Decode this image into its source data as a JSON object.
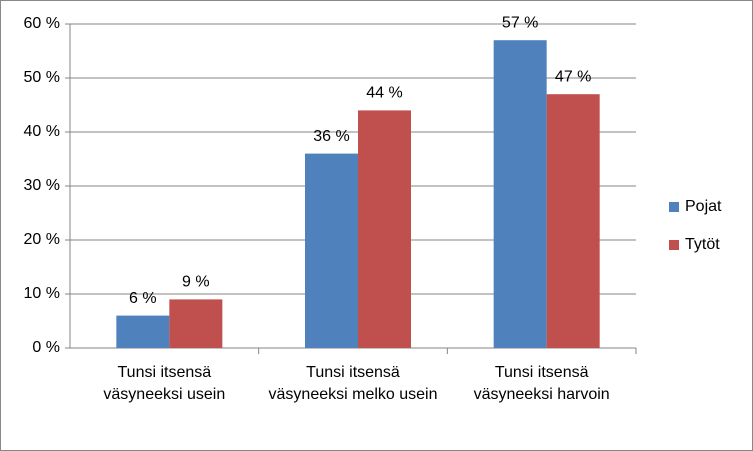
{
  "chart_data": {
    "type": "bar",
    "categories": [
      "Tunsi itsensä väsyneeksi usein",
      "Tunsi itsensä väsyneeksi melko usein",
      "Tunsi itsensä väsyneeksi harvoin"
    ],
    "series": [
      {
        "name": "Pojat",
        "color": "#4f81bd",
        "values": [
          6,
          36,
          57
        ],
        "value_labels": [
          "6 %",
          "36 %",
          "57 %"
        ]
      },
      {
        "name": "Tytöt",
        "color": "#c0504d",
        "values": [
          9,
          44,
          47
        ],
        "value_labels": [
          "9 %",
          "44 %",
          "47 %"
        ]
      }
    ],
    "ylim": [
      0,
      60
    ],
    "yticks": [
      {
        "value": 0,
        "label": "0 %"
      },
      {
        "value": 10,
        "label": "10 %"
      },
      {
        "value": 20,
        "label": "20 %"
      },
      {
        "value": 30,
        "label": "30 %"
      },
      {
        "value": 40,
        "label": "40 %"
      },
      {
        "value": 50,
        "label": "50 %"
      },
      {
        "value": 60,
        "label": "60 %"
      }
    ],
    "grid": true,
    "legend": "right"
  }
}
